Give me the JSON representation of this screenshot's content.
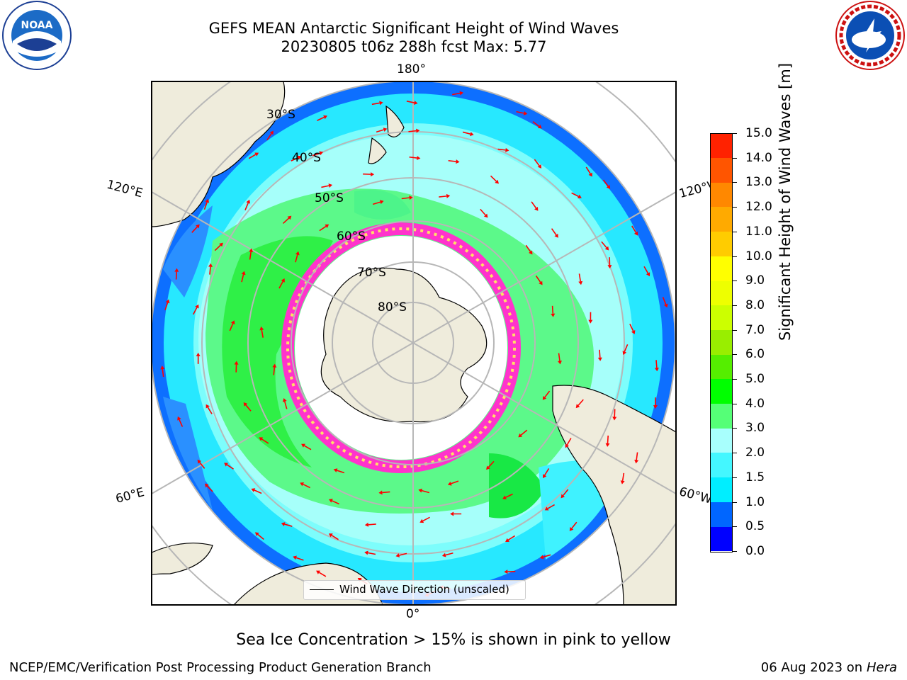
{
  "title": {
    "line1": "GEFS MEAN Antarctic Significant Height of Wind Waves",
    "line2": "20230805 t06z 288h fcst   Max: 5.77"
  },
  "logos": {
    "left": "noaa-logo",
    "right": "national-weather-service-logo"
  },
  "map": {
    "projection": "south-polar-stereographic",
    "longitude_labels": [
      "180°",
      "120°E",
      "120°W",
      "60°E",
      "60°W",
      "0°"
    ],
    "latitude_labels": [
      "30°S",
      "40°S",
      "50°S",
      "60°S",
      "70°S",
      "80°S"
    ],
    "land_color": "#efecdc",
    "ice_color": "#ffffff",
    "sea_ice_colors": [
      "#ff33cc",
      "#ffe066"
    ],
    "gridline_color": "#b7b7b7",
    "arrow_color": "#ff0000"
  },
  "legend": {
    "label": "Wind Wave Direction (unscaled)"
  },
  "colorbar": {
    "label": "Significant Height of Wind Waves [m]",
    "ticks": [
      "15.0",
      "14.0",
      "13.0",
      "12.0",
      "11.0",
      "10.0",
      "9.0",
      "8.0",
      "7.0",
      "6.0",
      "5.0",
      "4.0",
      "3.0",
      "2.0",
      "1.5",
      "1.0",
      "0.5",
      "0.0"
    ],
    "colors": [
      "#0000ff",
      "#0066ff",
      "#00eeff",
      "#44f7ff",
      "#a8fffd",
      "#55ff77",
      "#00ff00",
      "#55ee00",
      "#99ee00",
      "#ccff00",
      "#eeff00",
      "#ffff00",
      "#ffcc00",
      "#ffaa00",
      "#ff8800",
      "#ff5500",
      "#ff2200"
    ]
  },
  "note": "Sea Ice Concentration > 15% is shown in pink to yellow",
  "footer": {
    "left": "NCEP/EMC/Verification Post Processing Product Generation Branch",
    "right_date": "06 Aug 2023 on",
    "right_machine": "Hera"
  }
}
